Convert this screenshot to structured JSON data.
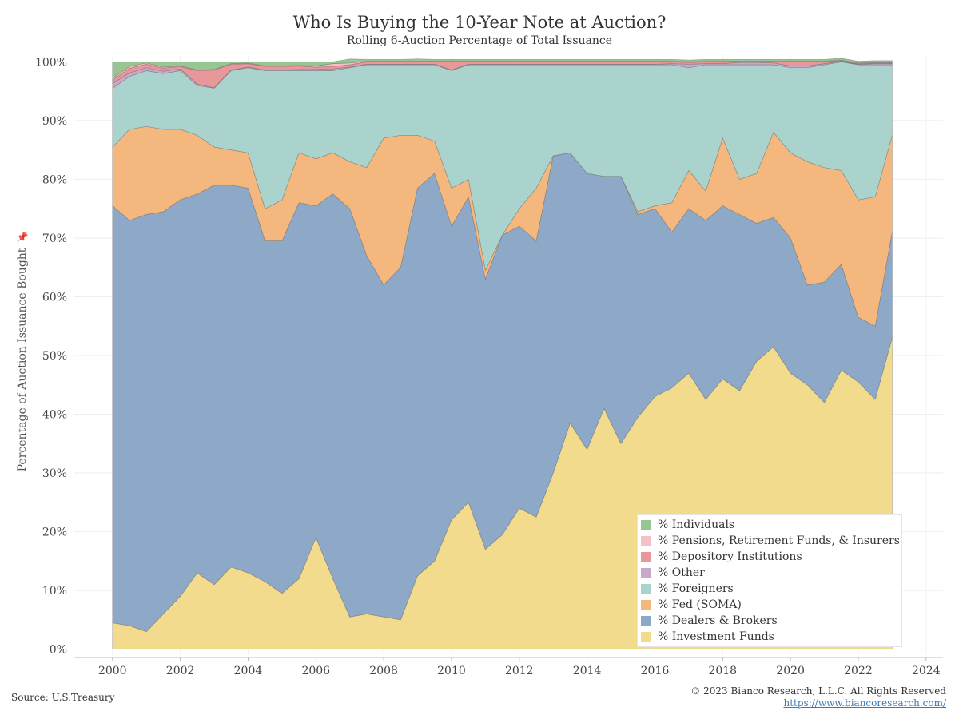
{
  "header": {
    "title": "Who Is Buying the 10-Year Note at Auction?",
    "subtitle": "Rolling 6-Auction Percentage of Total Issuance"
  },
  "footer": {
    "source": "Source: U.S.Treasury",
    "copyright": "© 2023 Bianco Research, L.L.C. All Rights Reserved",
    "url": "https://www.biancoresearch.com/"
  },
  "chart_data": {
    "type": "area",
    "stacked": true,
    "ylabel": "Percentage of Auction Issuance Bought",
    "xlabel": "",
    "xlim": [
      1998.85,
      2024.5
    ],
    "ylim": [
      -1,
      101
    ],
    "x_ticks": [
      2000,
      2002,
      2004,
      2006,
      2008,
      2010,
      2012,
      2014,
      2016,
      2018,
      2020,
      2022,
      2024
    ],
    "y_ticks": [
      0,
      10,
      20,
      30,
      40,
      50,
      60,
      70,
      80,
      90,
      100
    ],
    "y_tick_labels": [
      "0%",
      "10%",
      "20%",
      "30%",
      "40%",
      "50%",
      "60%",
      "70%",
      "80%",
      "90%",
      "100%"
    ],
    "grid": true,
    "legend_position": "bottom-right",
    "x": [
      2000.0,
      2000.5,
      2001.0,
      2001.5,
      2002.0,
      2002.5,
      2003.0,
      2003.5,
      2004.0,
      2004.5,
      2005.0,
      2005.5,
      2006.0,
      2006.5,
      2007.0,
      2007.5,
      2008.0,
      2008.5,
      2009.0,
      2009.5,
      2010.0,
      2010.5,
      2011.0,
      2011.5,
      2012.0,
      2012.5,
      2013.0,
      2013.5,
      2014.0,
      2014.5,
      2015.0,
      2015.5,
      2016.0,
      2016.5,
      2017.0,
      2017.5,
      2018.0,
      2018.5,
      2019.0,
      2019.5,
      2020.0,
      2020.5,
      2021.0,
      2021.5,
      2022.0,
      2022.5,
      2023.0
    ],
    "series": [
      {
        "name": "% Investment Funds",
        "color": "#f2db8c",
        "values": [
          4.5,
          4.0,
          3.0,
          6.0,
          9.0,
          13.0,
          11.0,
          14.0,
          13.0,
          11.5,
          9.5,
          12.0,
          19.0,
          12.0,
          5.5,
          6.0,
          5.5,
          5.0,
          12.5,
          15.0,
          22.0,
          25.0,
          17.0,
          19.5,
          24.0,
          22.5,
          30.0,
          38.5,
          34.0,
          41.0,
          35.0,
          39.5,
          43.0,
          44.5,
          47.0,
          42.5,
          46.0,
          44.0,
          49.0,
          51.5,
          47.0,
          45.0,
          42.0,
          47.5,
          45.5,
          42.5,
          53.0
        ]
      },
      {
        "name": "% Dealers & Brokers",
        "color": "#8ea9c8",
        "values": [
          71.0,
          69.0,
          71.0,
          68.5,
          67.5,
          64.5,
          68.0,
          65.0,
          65.5,
          58.0,
          60.0,
          64.0,
          56.5,
          65.5,
          69.5,
          61.0,
          56.5,
          60.0,
          66.0,
          66.0,
          50.0,
          52.0,
          46.0,
          51.0,
          48.0,
          47.0,
          54.0,
          46.0,
          47.0,
          39.5,
          45.5,
          34.5,
          32.0,
          26.5,
          28.0,
          30.5,
          29.5,
          30.0,
          23.5,
          22.0,
          23.0,
          17.0,
          20.5,
          18.0,
          11.0,
          12.5,
          18.0
        ]
      },
      {
        "name": "% Fed (SOMA)",
        "color": "#f4b77e",
        "values": [
          10.0,
          15.5,
          15.0,
          14.0,
          12.0,
          10.0,
          6.5,
          6.0,
          6.0,
          5.5,
          7.0,
          8.5,
          8.0,
          7.0,
          8.0,
          15.0,
          25.0,
          22.5,
          9.0,
          5.5,
          6.5,
          3.0,
          1.5,
          0.0,
          3.0,
          9.0,
          0.0,
          0.0,
          0.0,
          0.0,
          0.0,
          0.5,
          0.5,
          5.0,
          6.5,
          5.0,
          11.5,
          6.0,
          8.5,
          14.5,
          14.5,
          21.0,
          19.5,
          16.0,
          20.0,
          22.0,
          16.5
        ]
      },
      {
        "name": "% Foreigners",
        "color": "#aad3ce",
        "values": [
          10.0,
          9.0,
          9.5,
          9.5,
          10.0,
          8.5,
          10.0,
          13.5,
          14.5,
          23.5,
          22.0,
          14.0,
          15.0,
          14.0,
          16.0,
          17.5,
          12.5,
          12.0,
          12.0,
          13.0,
          20.0,
          19.5,
          35.0,
          29.0,
          24.5,
          21.0,
          15.5,
          15.0,
          18.5,
          19.0,
          19.0,
          25.0,
          24.0,
          23.5,
          17.5,
          21.5,
          12.5,
          19.5,
          18.5,
          11.5,
          14.5,
          16.0,
          17.5,
          18.5,
          23.0,
          22.5,
          12.0
        ]
      },
      {
        "name": "% Other",
        "color": "#c9a8c8",
        "values": [
          0.8,
          0.6,
          0.5,
          0.4,
          0.3,
          0.2,
          0.1,
          0.1,
          0.1,
          0.1,
          0.1,
          0.2,
          0.2,
          0.3,
          0.1,
          0.1,
          0.1,
          0.1,
          0.1,
          0.1,
          0.1,
          0.1,
          0.1,
          0.1,
          0.1,
          0.1,
          0.1,
          0.1,
          0.1,
          0.1,
          0.1,
          0.1,
          0.1,
          0.2,
          0.6,
          0.2,
          0.2,
          0.4,
          0.4,
          0.3,
          0.3,
          0.3,
          0.2,
          0.1,
          0.1,
          0.2,
          0.2
        ]
      },
      {
        "name": "% Depository Institutions",
        "color": "#e8989b",
        "values": [
          0.6,
          0.8,
          0.6,
          0.5,
          0.4,
          2.3,
          3.0,
          1.0,
          0.6,
          0.6,
          0.6,
          0.6,
          0.4,
          0.4,
          0.4,
          0.4,
          0.4,
          0.4,
          0.4,
          0.4,
          1.4,
          0.4,
          0.4,
          0.4,
          0.4,
          0.4,
          0.4,
          0.4,
          0.4,
          0.4,
          0.4,
          0.4,
          0.4,
          0.3,
          0.3,
          0.3,
          0.3,
          0.1,
          0.1,
          0.2,
          0.7,
          0.7,
          0.3,
          0.1,
          0.1,
          0.1,
          0.1
        ]
      },
      {
        "name": "% Pensions, Retirement Funds, & Insurers",
        "color": "#f6c1c6",
        "values": [
          0.3,
          0.3,
          0.2,
          0.2,
          0.1,
          0.1,
          0.1,
          0.1,
          0.1,
          0.1,
          0.1,
          0.1,
          0.2,
          0.5,
          0.3,
          0.1,
          0.1,
          0.1,
          0.1,
          0.1,
          0.1,
          0.1,
          0.1,
          0.1,
          0.1,
          0.1,
          0.1,
          0.1,
          0.1,
          0.1,
          0.1,
          0.1,
          0.1,
          0.1,
          0.1,
          0.1,
          0.1,
          0.1,
          0.1,
          0.1,
          0.1,
          0.1,
          0.1,
          0.1,
          0.1,
          0.1,
          0.1
        ]
      },
      {
        "name": "% Individuals",
        "color": "#97c693",
        "values": [
          2.8,
          0.8,
          0.2,
          0.9,
          0.7,
          1.4,
          1.3,
          0.3,
          0.2,
          0.7,
          0.7,
          0.6,
          0.7,
          0.3,
          0.7,
          0.3,
          0.3,
          0.3,
          0.4,
          0.3,
          0.3,
          0.3,
          0.3,
          0.3,
          0.3,
          0.3,
          0.3,
          0.3,
          0.3,
          0.3,
          0.3,
          0.3,
          0.3,
          0.3,
          0.3,
          0.3,
          0.3,
          0.3,
          0.3,
          0.3,
          0.3,
          0.3,
          0.3,
          0.3,
          0.3,
          0.3,
          0.3
        ]
      }
    ],
    "legend_order": [
      "% Individuals",
      "% Pensions, Retirement Funds, & Insurers",
      "% Depository Institutions",
      "% Other",
      "% Foreigners",
      "% Fed (SOMA)",
      "% Dealers & Brokers",
      "% Investment Funds"
    ]
  }
}
